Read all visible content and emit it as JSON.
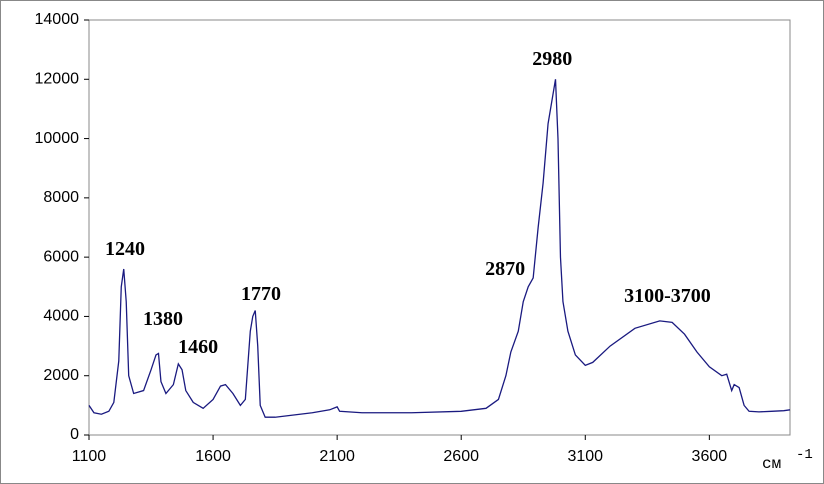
{
  "chart_data": {
    "type": "line",
    "xlabel": "см",
    "xlabel_exponent": "-1",
    "xlim": [
      1100,
      3925
    ],
    "ylim": [
      0,
      14000
    ],
    "xticks": [
      1100,
      1600,
      2100,
      2600,
      3100,
      3600
    ],
    "yticks": [
      0,
      2000,
      4000,
      6000,
      8000,
      10000,
      12000,
      14000
    ],
    "annotations": [
      {
        "text": "1240",
        "x": 1245,
        "y": 6070
      },
      {
        "text": "1380",
        "x": 1398,
        "y": 3710
      },
      {
        "text": "1460",
        "x": 1540,
        "y": 2770
      },
      {
        "text": "1770",
        "x": 1793,
        "y": 4550
      },
      {
        "text": "2870",
        "x": 2777,
        "y": 5400
      },
      {
        "text": "2980",
        "x": 2967,
        "y": 12480
      },
      {
        "text": "3100-3700",
        "x": 3431,
        "y": 4490
      }
    ],
    "series": [
      {
        "color": "#1a1a80",
        "x": [
          1100,
          1120,
          1150,
          1180,
          1200,
          1220,
          1230,
          1240,
          1250,
          1260,
          1280,
          1320,
          1350,
          1370,
          1380,
          1390,
          1410,
          1440,
          1460,
          1475,
          1490,
          1520,
          1560,
          1600,
          1630,
          1650,
          1680,
          1710,
          1730,
          1750,
          1760,
          1770,
          1780,
          1790,
          1810,
          1850,
          1900,
          2000,
          2070,
          2100,
          2110,
          2200,
          2400,
          2600,
          2700,
          2750,
          2780,
          2800,
          2830,
          2850,
          2870,
          2890,
          2910,
          2930,
          2950,
          2970,
          2980,
          2990,
          3000,
          3010,
          3030,
          3060,
          3100,
          3130,
          3200,
          3300,
          3400,
          3450,
          3500,
          3550,
          3600,
          3650,
          3670,
          3690,
          3700,
          3720,
          3740,
          3760,
          3800,
          3850,
          3900,
          3925
        ],
        "values": [
          1000,
          750,
          700,
          800,
          1100,
          2500,
          5000,
          5600,
          4500,
          2000,
          1400,
          1500,
          2200,
          2700,
          2750,
          1800,
          1400,
          1700,
          2400,
          2200,
          1500,
          1100,
          900,
          1200,
          1650,
          1700,
          1400,
          1000,
          1200,
          3500,
          4000,
          4200,
          3000,
          1000,
          600,
          600,
          650,
          750,
          850,
          950,
          800,
          750,
          750,
          800,
          900,
          1200,
          2000,
          2800,
          3500,
          4500,
          5000,
          5300,
          7000,
          8500,
          10500,
          11500,
          12000,
          10000,
          6000,
          4500,
          3500,
          2700,
          2350,
          2450,
          3000,
          3600,
          3850,
          3800,
          3400,
          2800,
          2300,
          2000,
          2050,
          1500,
          1700,
          1600,
          1000,
          800,
          780,
          800,
          820,
          850
        ]
      }
    ]
  }
}
